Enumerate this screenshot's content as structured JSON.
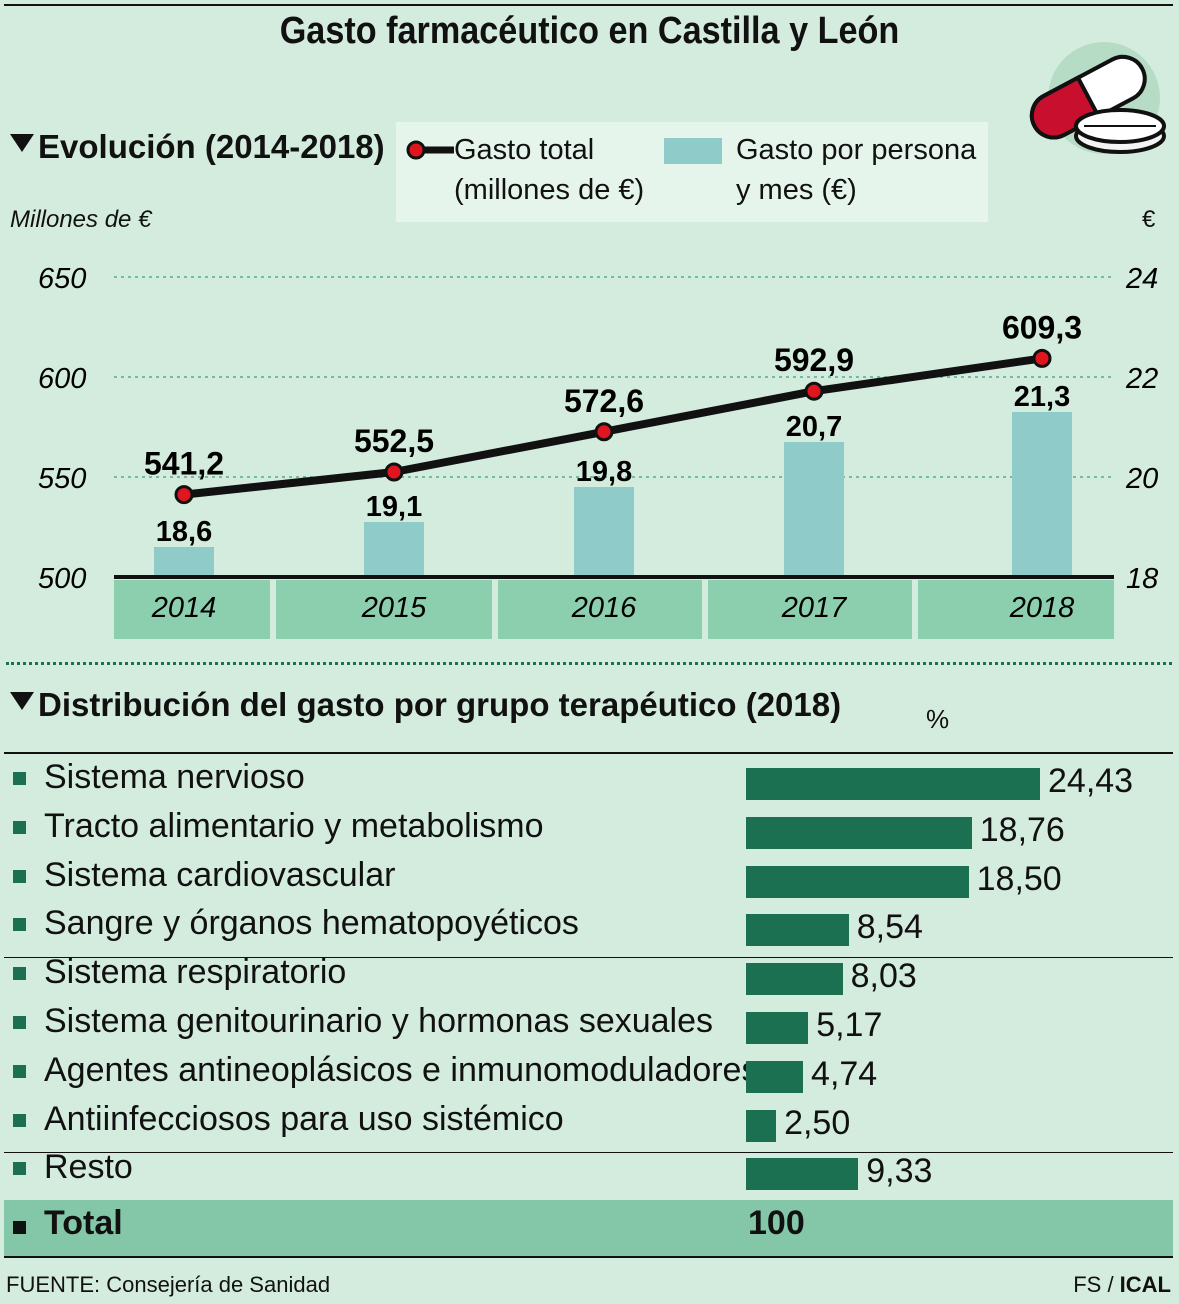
{
  "title": "Gasto farmacéutico en Castilla y León",
  "section1_title": "Evolución (2014-2018)",
  "legend": {
    "line_label_1": "Gasto total",
    "line_label_2": "(millones de €)",
    "bar_label_1": "Gasto por persona",
    "bar_label_2": "y mes (€)"
  },
  "left_axis_unit": "Millones de €",
  "right_axis_unit": "€",
  "colors": {
    "background": "#d4ecde",
    "bar": "#8fcbc9",
    "line": "#111111",
    "marker": "#e0161f",
    "dark_green": "#1a7050",
    "year_band": "#8ccfae"
  },
  "chart_data": [
    {
      "type": "bar+line",
      "categories": [
        "2014",
        "2015",
        "2016",
        "2017",
        "2018"
      ],
      "series": [
        {
          "name": "Gasto total (millones de €)",
          "axis": "left",
          "type": "line",
          "values": [
            541.2,
            552.5,
            572.6,
            592.9,
            609.3
          ],
          "labels": [
            "541,2",
            "552,5",
            "572,6",
            "592,9",
            "609,3"
          ]
        },
        {
          "name": "Gasto por persona y mes (€)",
          "axis": "right",
          "type": "bar",
          "values": [
            18.6,
            19.1,
            19.8,
            20.7,
            21.3
          ],
          "labels": [
            "18,6",
            "19,1",
            "19,8",
            "20,7",
            "21,3"
          ]
        }
      ],
      "left_axis": {
        "min": 500,
        "max": 650,
        "ticks": [
          "500",
          "550",
          "600",
          "650"
        ]
      },
      "right_axis": {
        "min": 18,
        "max": 24,
        "ticks": [
          "18",
          "20",
          "22",
          "24"
        ]
      },
      "grid": true
    },
    {
      "type": "bar",
      "orientation": "horizontal",
      "title": "Distribución del gasto por grupo terapéutico (2018)",
      "unit": "%",
      "categories": [
        "Sistema nervioso",
        "Tracto alimentario y metabolismo",
        "Sistema cardiovascular",
        "Sangre y órganos hematopoyéticos",
        "Sistema respiratorio",
        "Sistema genitourinario y hormonas sexuales",
        "Agentes antineoplásicos e inmunomoduladores",
        "Antiinfecciosos para uso sistémico",
        "Resto"
      ],
      "values": [
        24.43,
        18.76,
        18.5,
        8.54,
        8.03,
        5.17,
        4.74,
        2.5,
        9.33
      ],
      "labels": [
        "24,43",
        "18,76",
        "18,50",
        "8,54",
        "8,03",
        "5,17",
        "4,74",
        "2,50",
        "9,33"
      ],
      "total_label": "Total",
      "total_value": "100"
    }
  ],
  "section2_title": "Distribución del gasto por grupo terapéutico (2018)",
  "percent_label": "%",
  "source": "FUENTE: Consejería de Sanidad",
  "credit_fs": "FS / ",
  "credit_ical": "ICAL"
}
